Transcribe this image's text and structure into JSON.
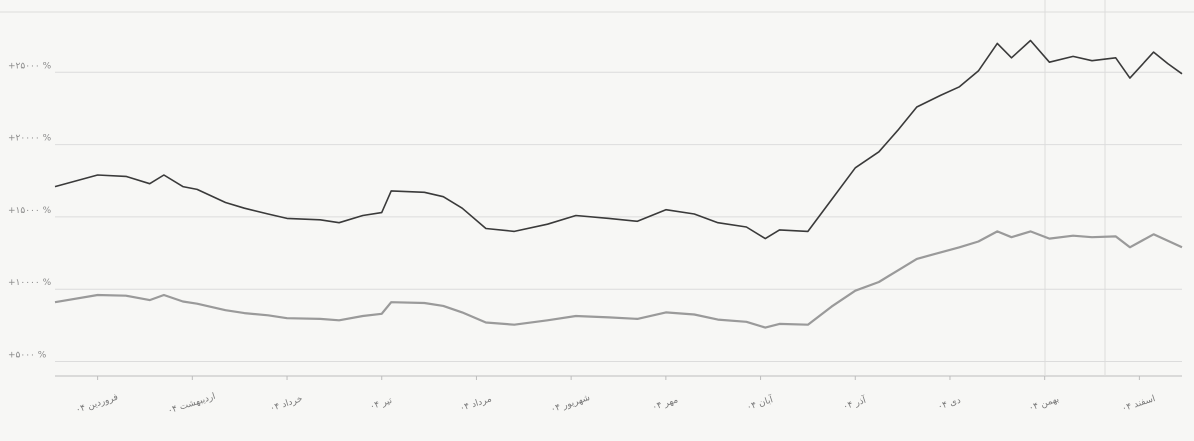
{
  "chart_data": {
    "type": "line",
    "title": "",
    "xlabel": "",
    "ylabel": "",
    "grid": true,
    "legend": "none",
    "y_ticks": [
      {
        "value": 5000,
        "label": "+۵۰۰۰ %"
      },
      {
        "value": 10000,
        "label": "+۱۰۰۰۰ %"
      },
      {
        "value": 15000,
        "label": "+۱۵۰۰۰ %"
      },
      {
        "value": 20000,
        "label": "+۲۰۰۰۰ %"
      },
      {
        "value": 25000,
        "label": "+۲۵۰۰۰ %"
      }
    ],
    "ylim": [
      4000,
      30000
    ],
    "categories": [
      "فروردین ۰۴",
      "اردیبهشت ۰۴",
      "خرداد ۰۴",
      "تیر ۰۴",
      "مرداد ۰۴",
      "شهریور ۰۴",
      "مهر ۰۴",
      "آبان ۰۴",
      "آذر ۰۴",
      "دی ۰۴",
      "بهمن ۰۴",
      "اسفند ۰۴"
    ],
    "xlim": [
      -0.45,
      11.45
    ],
    "series": [
      {
        "color": "#3a3a3a",
        "points": [
          [
            -0.45,
            17100
          ],
          [
            0.0,
            17900
          ],
          [
            0.3,
            17800
          ],
          [
            0.55,
            17300
          ],
          [
            0.7,
            17900
          ],
          [
            0.9,
            17100
          ],
          [
            1.05,
            16900
          ],
          [
            1.35,
            16000
          ],
          [
            1.55,
            15600
          ],
          [
            1.8,
            15200
          ],
          [
            2.0,
            14900
          ],
          [
            2.35,
            14800
          ],
          [
            2.55,
            14600
          ],
          [
            2.8,
            15100
          ],
          [
            3.0,
            15300
          ],
          [
            3.1,
            16800
          ],
          [
            3.45,
            16700
          ],
          [
            3.65,
            16400
          ],
          [
            3.85,
            15600
          ],
          [
            4.1,
            14200
          ],
          [
            4.4,
            14000
          ],
          [
            4.75,
            14500
          ],
          [
            5.05,
            15100
          ],
          [
            5.4,
            14900
          ],
          [
            5.7,
            14700
          ],
          [
            6.0,
            15500
          ],
          [
            6.3,
            15200
          ],
          [
            6.55,
            14600
          ],
          [
            6.85,
            14300
          ],
          [
            7.05,
            13500
          ],
          [
            7.2,
            14100
          ],
          [
            7.5,
            14000
          ],
          [
            7.75,
            16200
          ],
          [
            8.0,
            18400
          ],
          [
            8.25,
            19500
          ],
          [
            8.45,
            21000
          ],
          [
            8.65,
            22600
          ],
          [
            8.9,
            23400
          ],
          [
            9.1,
            24000
          ],
          [
            9.3,
            25100
          ],
          [
            9.5,
            27000
          ],
          [
            9.65,
            26000
          ],
          [
            9.85,
            27200
          ],
          [
            10.05,
            25700
          ],
          [
            10.3,
            26100
          ],
          [
            10.5,
            25800
          ],
          [
            10.75,
            26000
          ],
          [
            10.9,
            24600
          ],
          [
            11.15,
            26400
          ],
          [
            11.3,
            25600
          ],
          [
            11.45,
            24900
          ]
        ]
      },
      {
        "color": "#9a9a9a",
        "points": [
          [
            -0.45,
            9100
          ],
          [
            0.0,
            9600
          ],
          [
            0.3,
            9550
          ],
          [
            0.55,
            9250
          ],
          [
            0.7,
            9600
          ],
          [
            0.9,
            9150
          ],
          [
            1.05,
            9000
          ],
          [
            1.35,
            8550
          ],
          [
            1.55,
            8350
          ],
          [
            1.8,
            8200
          ],
          [
            2.0,
            8000
          ],
          [
            2.35,
            7950
          ],
          [
            2.55,
            7850
          ],
          [
            2.8,
            8150
          ],
          [
            3.0,
            8300
          ],
          [
            3.1,
            9100
          ],
          [
            3.45,
            9050
          ],
          [
            3.65,
            8850
          ],
          [
            3.85,
            8400
          ],
          [
            4.1,
            7700
          ],
          [
            4.4,
            7550
          ],
          [
            4.75,
            7850
          ],
          [
            5.05,
            8150
          ],
          [
            5.4,
            8050
          ],
          [
            5.7,
            7950
          ],
          [
            6.0,
            8400
          ],
          [
            6.3,
            8250
          ],
          [
            6.55,
            7900
          ],
          [
            6.85,
            7750
          ],
          [
            7.05,
            7350
          ],
          [
            7.2,
            7600
          ],
          [
            7.5,
            7550
          ],
          [
            7.75,
            8800
          ],
          [
            8.0,
            9900
          ],
          [
            8.25,
            10500
          ],
          [
            8.45,
            11300
          ],
          [
            8.65,
            12100
          ],
          [
            8.9,
            12550
          ],
          [
            9.1,
            12900
          ],
          [
            9.3,
            13300
          ],
          [
            9.5,
            14000
          ],
          [
            9.65,
            13600
          ],
          [
            9.85,
            14000
          ],
          [
            10.05,
            13500
          ],
          [
            10.3,
            13700
          ],
          [
            10.5,
            13600
          ],
          [
            10.75,
            13650
          ],
          [
            10.9,
            12900
          ],
          [
            11.15,
            13800
          ],
          [
            11.3,
            13350
          ],
          [
            11.45,
            12900
          ]
        ]
      }
    ]
  }
}
